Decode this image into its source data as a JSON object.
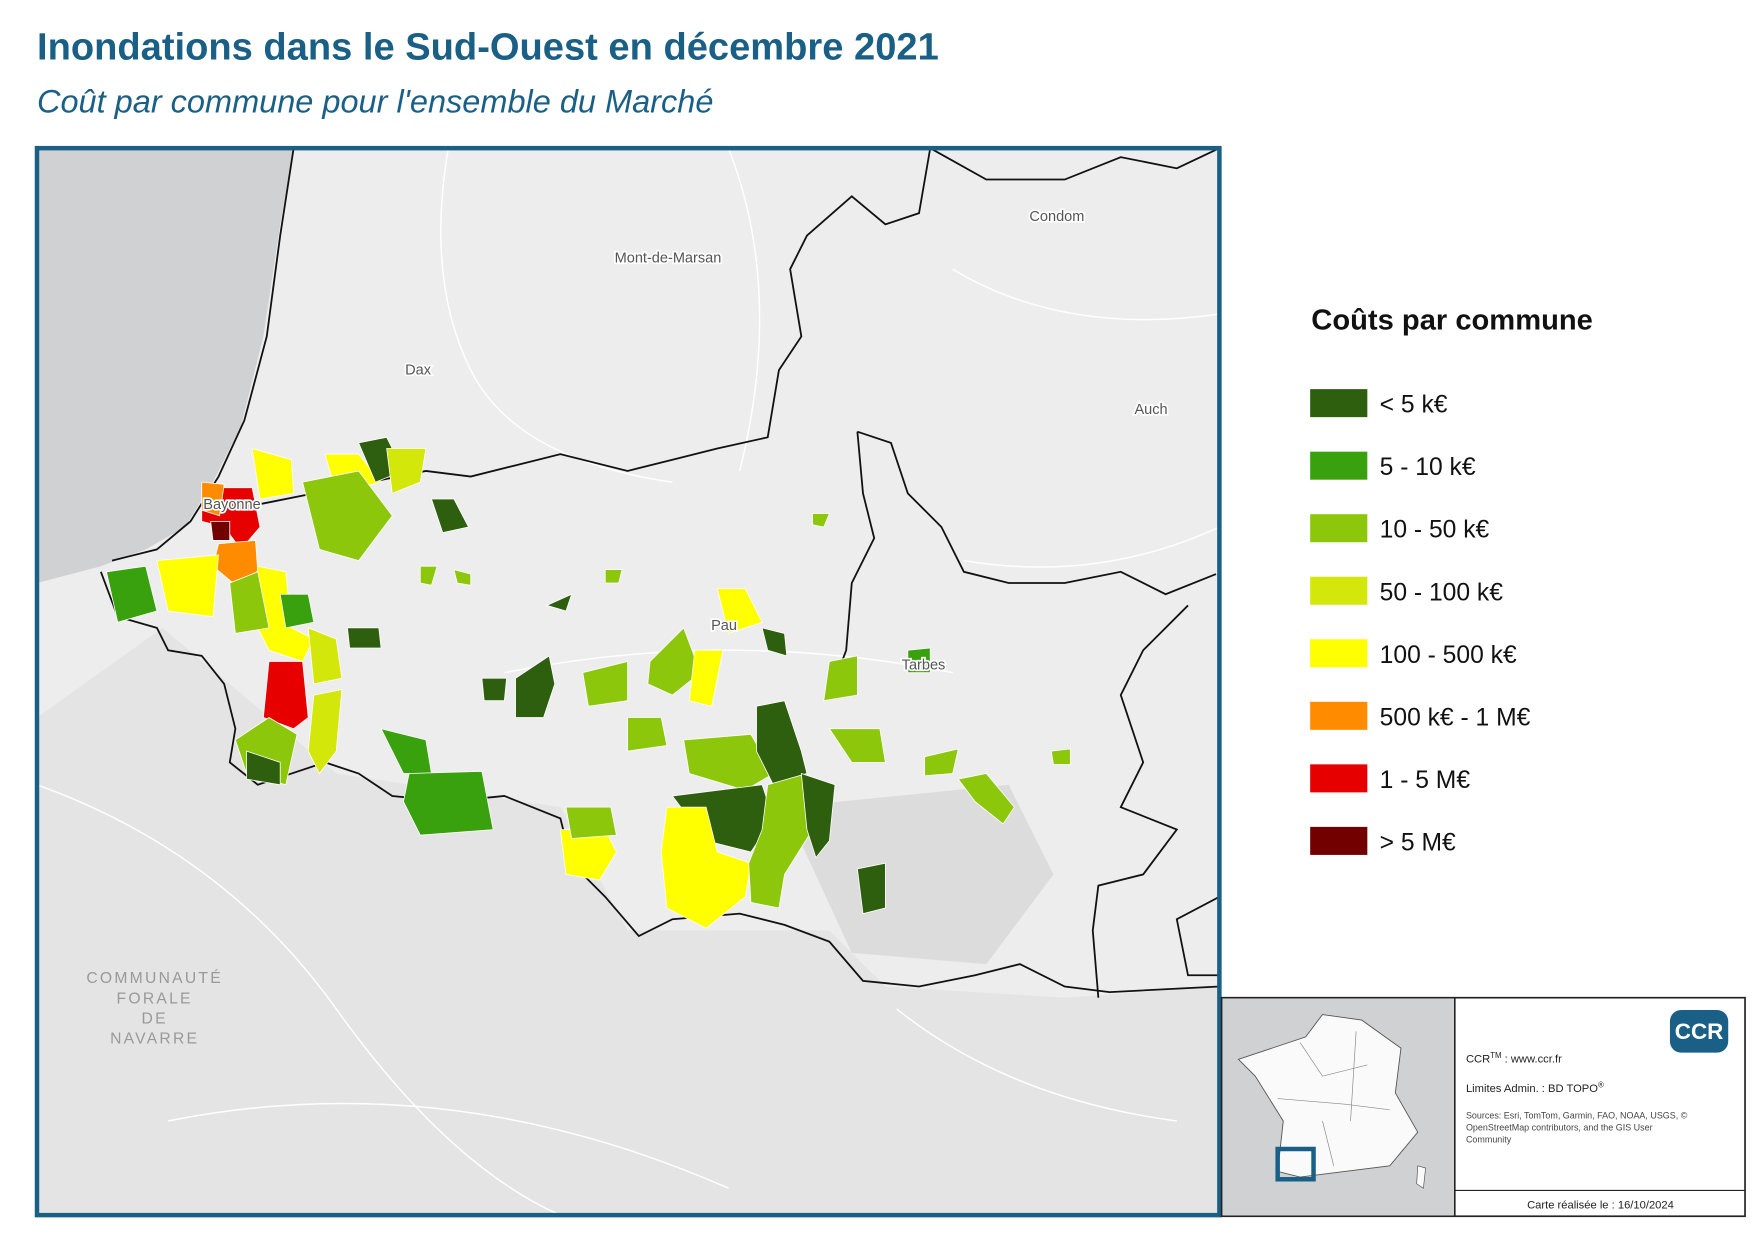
{
  "header": {
    "title": "Inondations dans le Sud-Ouest en décembre 2021",
    "subtitle": "Coût par commune pour l'ensemble du Marché"
  },
  "map": {
    "places": [
      {
        "label": "Condom"
      },
      {
        "label": "Mont-de-Marsan"
      },
      {
        "label": "Dax"
      },
      {
        "label": "Auch"
      },
      {
        "label": "Bayonne"
      },
      {
        "label": "Pau"
      },
      {
        "label": "Tarbes"
      }
    ],
    "region_label": [
      "COMMUNAUTÉ",
      "FORALE",
      "DE",
      "NAVARRE"
    ]
  },
  "legend": {
    "title": "Coûts par commune",
    "items": [
      {
        "label": "< 5 k€",
        "color": "#2d5f0f"
      },
      {
        "label": "5 - 10 k€",
        "color": "#3aa10e"
      },
      {
        "label": "10 - 50 k€",
        "color": "#8cc70b"
      },
      {
        "label": "50 - 100 k€",
        "color": "#d3e70a"
      },
      {
        "label": "100 - 500 k€",
        "color": "#ffff00"
      },
      {
        "label": "500 k€ - 1 M€",
        "color": "#ff8c00"
      },
      {
        "label": "1 - 5 M€",
        "color": "#e60000"
      },
      {
        "label": "> 5 M€",
        "color": "#730000"
      }
    ]
  },
  "info": {
    "logo": "CCR",
    "site_prefix": "CCR",
    "site_tm": "TM",
    "site": " : www.ccr.fr",
    "limits": "Limites Admin. : BD TOPO",
    "limits_reg": "®",
    "sources": [
      "Sources: Esri, TomTom, Garmin, FAO, NOAA, USGS, ©",
      "OpenStreetMap contributors, and the GIS User",
      "Community"
    ],
    "date": "Carte réalisée le : 16/10/2024"
  }
}
